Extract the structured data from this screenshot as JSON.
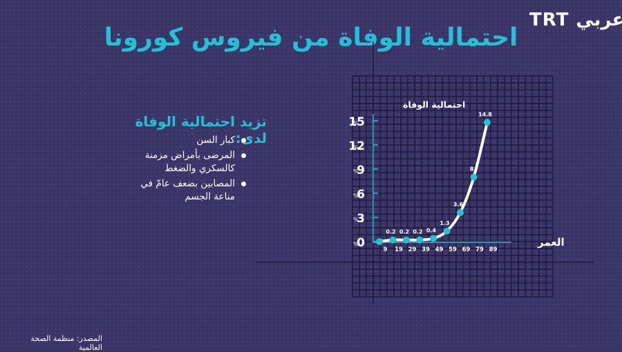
{
  "brand": {
    "logo_text": "TRT عربي"
  },
  "title": "احتمالية الوفاة من فيروس كورونا",
  "info": {
    "heading": "تزيد احتمالية الوفاة لدى:",
    "items": [
      "كبار السن",
      "المرضى بأمراض مزمنة كالسكري والضغط",
      "المصابين بضعف عامّ في مناعة الجسم"
    ]
  },
  "source": "المصدر: منظمة الصحة العالمية",
  "chart_data": {
    "type": "line",
    "ylabel": "احتمالية الوفاة",
    "xlabel": "العمر",
    "y_unit": "%",
    "ylim": [
      0,
      15
    ],
    "y_ticks": [
      0,
      3,
      6,
      9,
      12,
      15
    ],
    "x_ticks": [
      "9",
      "19",
      "29",
      "39",
      "49",
      "59",
      "69",
      "79",
      "89"
    ],
    "x": [
      "0",
      "9",
      "19",
      "29",
      "39",
      "49",
      "59",
      "69",
      "79"
    ],
    "values": [
      0,
      0.2,
      0.2,
      0.2,
      0.4,
      1.3,
      3.6,
      8,
      14.8
    ],
    "point_labels": [
      "",
      "0.2",
      "0.2",
      "0.2",
      "0.4",
      "1.3",
      "3.6",
      "8",
      "14.8"
    ],
    "grid": true,
    "colors": {
      "line": "#ffffff",
      "marker": "#22c1d4",
      "axis": "#22c1d4",
      "grid": "#1e1a3e"
    }
  }
}
